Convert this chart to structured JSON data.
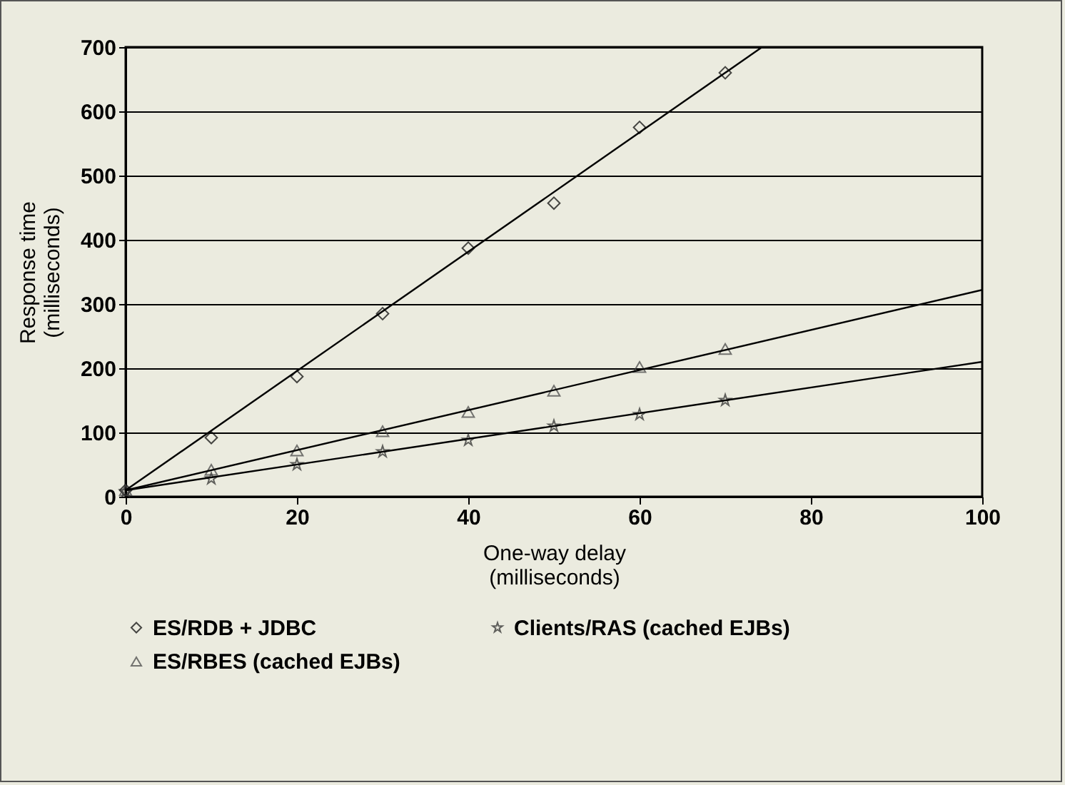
{
  "chart_data": {
    "type": "scatter",
    "xlabel": "One-way delay\n(milliseconds)",
    "ylabel": "Response time\n(milliseconds)",
    "x": [
      0,
      10,
      20,
      30,
      40,
      50,
      60,
      70
    ],
    "series": [
      {
        "name": "ES/RDB + JDBC",
        "color": "#000000",
        "marker": "diamond",
        "values": [
          10,
          92,
          187,
          285,
          387,
          457,
          575,
          660
        ]
      },
      {
        "name": "Clients/RAS (cached EJBs)",
        "color": "#262626",
        "marker": "star",
        "values": [
          8,
          28,
          50,
          70,
          88,
          110,
          128,
          150
        ]
      },
      {
        "name": "ES/RBES (cached EJBs)",
        "color": "#404040",
        "marker": "triangle",
        "values": [
          10,
          42,
          72,
          102,
          132,
          165,
          202,
          230
        ]
      },
      {
        "type": "line",
        "color": "#000000",
        "x": [
          0,
          74.3
        ],
        "values": [
          10,
          700
        ]
      },
      {
        "type": "line",
        "color": "#000000",
        "x": [
          0,
          100
        ],
        "values": [
          10,
          210
        ]
      },
      {
        "type": "line",
        "color": "#000000",
        "x": [
          0,
          100
        ],
        "values": [
          10,
          322
        ]
      }
    ],
    "xlim": [
      0,
      100
    ],
    "xticks": [
      0,
      20,
      40,
      60,
      80,
      100
    ],
    "ylim": [
      0,
      700
    ],
    "yticks": [
      0,
      100,
      200,
      300,
      400,
      500,
      600,
      700
    ],
    "grid": "y",
    "legend": "bottom"
  }
}
